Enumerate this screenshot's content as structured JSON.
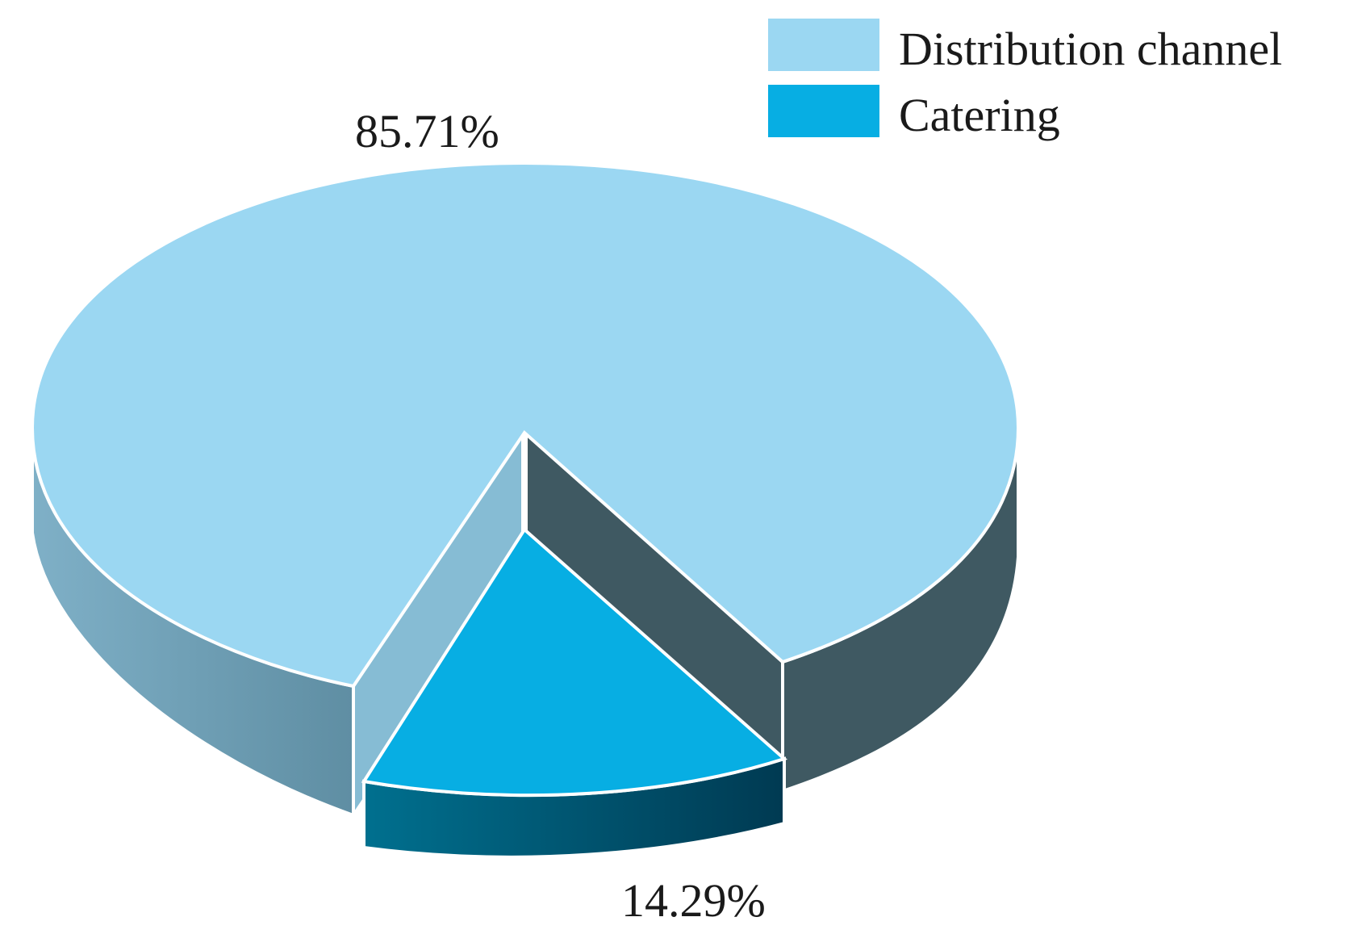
{
  "chart_data": {
    "type": "pie",
    "style": "3d-exploded",
    "slices": [
      {
        "name": "Distribution channel",
        "value": 85.71,
        "label": "85.71%",
        "color": "#9BD7F2"
      },
      {
        "name": "Catering",
        "value": 14.29,
        "label": "14.29%",
        "color": "#07AEE3"
      }
    ],
    "legend": {
      "position": "top-right",
      "entries": [
        "Distribution channel",
        "Catering"
      ]
    }
  }
}
